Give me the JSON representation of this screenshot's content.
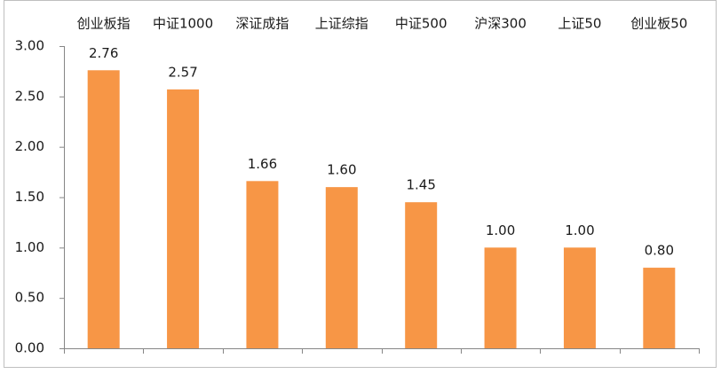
{
  "chart_data": {
    "type": "bar",
    "categories": [
      "创业板指",
      "中证1000",
      "深证成指",
      "上证综指",
      "中证500",
      "沪深300",
      "上证50",
      "创业板50"
    ],
    "values": [
      2.76,
      2.57,
      1.66,
      1.6,
      1.45,
      1.0,
      1.0,
      0.8
    ],
    "value_labels": [
      "2.76",
      "2.57",
      "1.66",
      "1.60",
      "1.45",
      "1.00",
      "1.00",
      "0.80"
    ],
    "color": "#f79646",
    "ylim": [
      0,
      3
    ],
    "yticks": [
      {
        "value": 0,
        "label": "0.00"
      },
      {
        "value": 0.5,
        "label": "0.50"
      },
      {
        "value": 1,
        "label": "1.00"
      },
      {
        "value": 1.5,
        "label": "1.50"
      },
      {
        "value": 2,
        "label": "2.00"
      },
      {
        "value": 2.5,
        "label": "2.50"
      },
      {
        "value": 3,
        "label": "3.00"
      }
    ],
    "grid": false
  }
}
